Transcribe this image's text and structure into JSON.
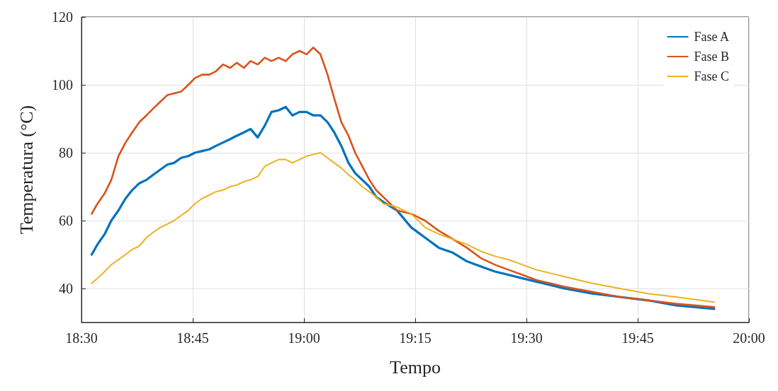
{
  "chart_data": {
    "type": "line",
    "xlabel": "Tempo",
    "ylabel": "Temperatura (°C)",
    "x": [
      18.523,
      18.536,
      18.552,
      18.567,
      18.583,
      18.599,
      18.614,
      18.63,
      18.646,
      18.661,
      18.677,
      18.693,
      18.708,
      18.724,
      18.74,
      18.755,
      18.771,
      18.787,
      18.802,
      18.818,
      18.834,
      18.849,
      18.865,
      18.88,
      18.896,
      18.912,
      18.927,
      18.943,
      18.959,
      18.974,
      18.99,
      19.006,
      19.021,
      19.037,
      19.053,
      19.068,
      19.084,
      19.1,
      19.115,
      19.131,
      19.147,
      19.162,
      19.178,
      19.209,
      19.241,
      19.272,
      19.303,
      19.335,
      19.366,
      19.397,
      19.429,
      19.46,
      19.491,
      19.522,
      19.554,
      19.585,
      19.648,
      19.71,
      19.773,
      19.836,
      19.922
    ],
    "series": [
      {
        "name": "Fase A",
        "color": "#0072bd",
        "values": [
          50,
          53,
          56,
          60,
          63,
          66.5,
          69,
          71,
          72,
          73.5,
          75,
          76.5,
          77,
          78.5,
          79,
          80,
          80.5,
          81,
          82,
          83,
          84,
          85,
          86,
          87,
          84.5,
          88,
          92,
          92.5,
          93.5,
          91,
          92,
          92,
          91,
          91,
          89,
          86,
          82,
          77,
          74,
          72,
          70,
          67,
          65.5,
          63,
          58,
          55,
          52,
          50.5,
          48,
          46.5,
          45,
          44,
          43,
          42,
          41,
          40,
          38.5,
          37.5,
          36.5,
          35,
          34
        ]
      },
      {
        "name": "Fase B",
        "color": "#d95319",
        "values": [
          62,
          65,
          68,
          72,
          79,
          83,
          86,
          89,
          91,
          93,
          95,
          97,
          97.5,
          98,
          100,
          102,
          103,
          103,
          104,
          106,
          105,
          106.5,
          105,
          107,
          106,
          108,
          107,
          108,
          107,
          109,
          110,
          109,
          111,
          109,
          103,
          96,
          89,
          85,
          80,
          76,
          72,
          69,
          67,
          63,
          62,
          60,
          57,
          54.5,
          52,
          49,
          47,
          45.5,
          44,
          42.5,
          41.5,
          40.5,
          39,
          37.5,
          36.5,
          35.5,
          34.5
        ]
      },
      {
        "name": "Fase C",
        "color": "#edb120",
        "values": [
          41.5,
          43,
          45,
          47,
          48.5,
          50,
          51.5,
          52.5,
          55,
          56.5,
          58,
          59,
          60,
          61.5,
          63,
          65,
          66.5,
          67.5,
          68.5,
          69,
          70,
          70.5,
          71.5,
          72,
          73,
          76,
          77,
          78,
          78,
          77,
          78,
          79,
          79.5,
          80,
          78.5,
          77,
          75.5,
          73.5,
          72,
          70,
          68.5,
          67,
          65,
          64,
          62,
          58,
          56,
          54.5,
          53,
          51,
          49.5,
          48.5,
          47,
          45.5,
          44.5,
          43.5,
          41.5,
          40,
          38.5,
          37.5,
          36
        ]
      }
    ],
    "xlim": [
      18.5,
      20
    ],
    "xticks": [
      {
        "value": 18.5,
        "label": "18:30"
      },
      {
        "value": 18.75,
        "label": "18:45"
      },
      {
        "value": 19,
        "label": "19:00"
      },
      {
        "value": 19.25,
        "label": "19:15"
      },
      {
        "value": 19.5,
        "label": "19:30"
      },
      {
        "value": 19.75,
        "label": "19:45"
      },
      {
        "value": 20,
        "label": "20:00"
      }
    ],
    "ylim": [
      30,
      120
    ],
    "yticks": [
      40,
      60,
      80,
      100,
      120
    ],
    "grid": true,
    "legend": "top right",
    "marker": "none",
    "line_style": "solid"
  }
}
